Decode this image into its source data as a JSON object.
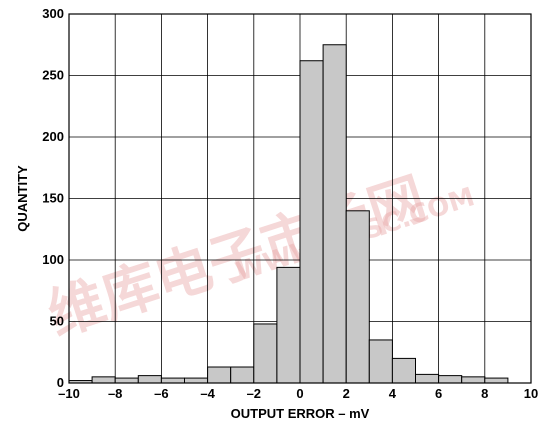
{
  "chart_data": {
    "type": "bar",
    "xlabel": "OUTPUT ERROR – mV",
    "ylabel": "QUANTITY",
    "xlim": [
      -10,
      10
    ],
    "ylim": [
      0,
      300
    ],
    "x_ticks": [
      -10,
      -8,
      -6,
      -4,
      -2,
      0,
      2,
      4,
      6,
      8,
      10
    ],
    "x_tick_labels": [
      "–10",
      "–8",
      "–6",
      "–4",
      "–2",
      "0",
      "2",
      "4",
      "6",
      "8",
      "10"
    ],
    "y_ticks": [
      0,
      50,
      100,
      150,
      200,
      250,
      300
    ],
    "y_tick_labels": [
      "0",
      "50",
      "100",
      "150",
      "200",
      "250",
      "300"
    ],
    "grid": true,
    "bin_width": 1,
    "bins": [
      {
        "x0": -10,
        "x1": -9,
        "value": 2
      },
      {
        "x0": -9,
        "x1": -8,
        "value": 5
      },
      {
        "x0": -8,
        "x1": -7,
        "value": 4
      },
      {
        "x0": -7,
        "x1": -6,
        "value": 6
      },
      {
        "x0": -6,
        "x1": -5,
        "value": 4
      },
      {
        "x0": -5,
        "x1": -4,
        "value": 4
      },
      {
        "x0": -4,
        "x1": -3,
        "value": 13
      },
      {
        "x0": -3,
        "x1": -2,
        "value": 13
      },
      {
        "x0": -2,
        "x1": -1,
        "value": 48
      },
      {
        "x0": -1,
        "x1": 0,
        "value": 94
      },
      {
        "x0": 0,
        "x1": 1,
        "value": 262
      },
      {
        "x0": 1,
        "x1": 2,
        "value": 275
      },
      {
        "x0": 2,
        "x1": 3,
        "value": 140
      },
      {
        "x0": 3,
        "x1": 4,
        "value": 35
      },
      {
        "x0": 4,
        "x1": 5,
        "value": 20
      },
      {
        "x0": 5,
        "x1": 6,
        "value": 7
      },
      {
        "x0": 6,
        "x1": 7,
        "value": 6
      },
      {
        "x0": 7,
        "x1": 8,
        "value": 5
      },
      {
        "x0": 8,
        "x1": 9,
        "value": 4
      }
    ],
    "bar_color": "#c8c8c8",
    "grid_color": "#000000"
  },
  "watermark": {
    "cn_text": "维库电子市场网",
    "latin_text": "WWW.DZSC.COM",
    "color": "#e8a8a8"
  }
}
